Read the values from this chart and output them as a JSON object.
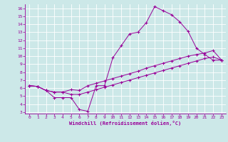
{
  "xlabel": "Windchill (Refroidissement éolien,°C)",
  "bg_color": "#cce8e8",
  "line_color": "#990099",
  "grid_color": "#ffffff",
  "xlim": [
    -0.5,
    23.5
  ],
  "ylim": [
    2.8,
    16.5
  ],
  "xticks": [
    0,
    1,
    2,
    3,
    4,
    5,
    6,
    7,
    8,
    9,
    10,
    11,
    12,
    13,
    14,
    15,
    16,
    17,
    18,
    19,
    20,
    21,
    22,
    23
  ],
  "yticks": [
    3,
    4,
    5,
    6,
    7,
    8,
    9,
    10,
    11,
    12,
    13,
    14,
    15,
    16
  ],
  "curve1_x": [
    0,
    1,
    2,
    3,
    4,
    5,
    6,
    7,
    8,
    9,
    10,
    11,
    12,
    13,
    14,
    15,
    16,
    17,
    18,
    19,
    20,
    21,
    22,
    23
  ],
  "curve1_y": [
    6.3,
    6.2,
    5.7,
    4.8,
    4.8,
    4.8,
    3.3,
    3.1,
    6.3,
    6.3,
    9.8,
    11.3,
    12.8,
    13.0,
    14.2,
    16.2,
    15.7,
    15.2,
    14.3,
    13.1,
    11.0,
    10.2,
    9.5,
    9.5
  ],
  "curve2_x": [
    0,
    1,
    2,
    3,
    4,
    5,
    6,
    7,
    8,
    9,
    10,
    11,
    12,
    13,
    14,
    15,
    16,
    17,
    18,
    19,
    20,
    21,
    22,
    23
  ],
  "curve2_y": [
    6.3,
    6.2,
    5.7,
    5.5,
    5.5,
    5.8,
    5.7,
    6.3,
    6.6,
    6.9,
    7.2,
    7.5,
    7.8,
    8.1,
    8.5,
    8.8,
    9.1,
    9.4,
    9.7,
    10.0,
    10.2,
    10.4,
    10.7,
    9.5
  ],
  "curve3_x": [
    0,
    1,
    2,
    3,
    4,
    5,
    6,
    7,
    8,
    9,
    10,
    11,
    12,
    13,
    14,
    15,
    16,
    17,
    18,
    19,
    20,
    21,
    22,
    23
  ],
  "curve3_y": [
    6.3,
    6.2,
    5.7,
    5.5,
    5.5,
    5.2,
    5.2,
    5.5,
    5.8,
    6.1,
    6.4,
    6.7,
    7.0,
    7.3,
    7.6,
    7.9,
    8.2,
    8.5,
    8.8,
    9.1,
    9.4,
    9.7,
    9.9,
    9.5
  ]
}
